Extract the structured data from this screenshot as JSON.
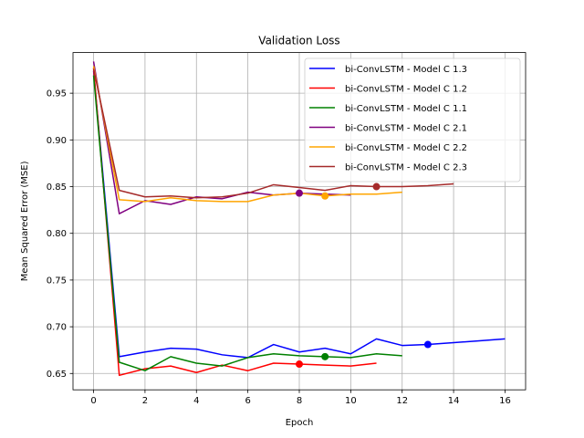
{
  "chart_data": {
    "type": "line",
    "title": "Validation Loss",
    "xlabel": "Epoch",
    "ylabel": "Mean Squared Error (MSE)",
    "xlim": [
      -0.8,
      16.8
    ],
    "ylim": [
      0.6325,
      0.9935
    ],
    "xticks": [
      0,
      2,
      4,
      6,
      8,
      10,
      12,
      14,
      16
    ],
    "yticks": [
      0.65,
      0.7,
      0.75,
      0.8,
      0.85,
      0.9,
      0.95
    ],
    "ytick_labels": [
      "0.65",
      "0.70",
      "0.75",
      "0.80",
      "0.85",
      "0.90",
      "0.95"
    ],
    "grid": true,
    "legend_position": "upper-right",
    "series": [
      {
        "name": "bi-ConvLSTM - Model C 1.3",
        "color": "#0000ff",
        "x": [
          0,
          1,
          2,
          3,
          4,
          5,
          6,
          7,
          8,
          9,
          10,
          11,
          12,
          13,
          14,
          15,
          16
        ],
        "y": [
          0.974,
          0.668,
          0.673,
          0.677,
          0.676,
          0.67,
          0.667,
          0.681,
          0.673,
          0.677,
          0.671,
          0.687,
          0.68,
          0.681,
          0.683,
          0.685,
          0.687
        ],
        "best_epoch": 13,
        "best_value": 0.681
      },
      {
        "name": "bi-ConvLSTM - Model C 1.2",
        "color": "#ff0000",
        "x": [
          0,
          1,
          2,
          3,
          4,
          5,
          6,
          7,
          8,
          9,
          10,
          11
        ],
        "y": [
          0.977,
          0.648,
          0.655,
          0.658,
          0.651,
          0.659,
          0.653,
          0.661,
          0.66,
          0.659,
          0.658,
          0.661
        ],
        "best_epoch": 8,
        "best_value": 0.66
      },
      {
        "name": "bi-ConvLSTM - Model C 1.1",
        "color": "#008000",
        "x": [
          0,
          1,
          2,
          3,
          4,
          5,
          6,
          7,
          8,
          9,
          10,
          11,
          12
        ],
        "y": [
          0.969,
          0.662,
          0.653,
          0.668,
          0.661,
          0.658,
          0.667,
          0.671,
          0.669,
          0.668,
          0.667,
          0.671,
          0.669
        ],
        "best_epoch": 9,
        "best_value": 0.668
      },
      {
        "name": "bi-ConvLSTM - Model C 2.1",
        "color": "#800080",
        "x": [
          0,
          1,
          2,
          3,
          4,
          5,
          6,
          7,
          8,
          9,
          10
        ],
        "y": [
          0.984,
          0.821,
          0.835,
          0.831,
          0.839,
          0.837,
          0.844,
          0.841,
          0.843,
          0.842,
          0.841
        ],
        "best_epoch": 8,
        "best_value": 0.843
      },
      {
        "name": "bi-ConvLSTM - Model C 2.2",
        "color": "#ffa500",
        "x": [
          0,
          1,
          2,
          3,
          4,
          5,
          6,
          7,
          8,
          9,
          10,
          11,
          12
        ],
        "y": [
          0.979,
          0.836,
          0.834,
          0.838,
          0.835,
          0.834,
          0.834,
          0.841,
          0.843,
          0.84,
          0.842,
          0.842,
          0.844
        ],
        "best_epoch": 9,
        "best_value": 0.84
      },
      {
        "name": "bi-ConvLSTM - Model C 2.3",
        "color": "#a52a2a",
        "x": [
          0,
          1,
          2,
          3,
          4,
          5,
          6,
          7,
          8,
          9,
          10,
          11,
          12,
          13,
          14
        ],
        "y": [
          0.976,
          0.846,
          0.839,
          0.84,
          0.838,
          0.839,
          0.843,
          0.852,
          0.849,
          0.846,
          0.851,
          0.85,
          0.85,
          0.851,
          0.853
        ],
        "best_epoch": 11,
        "best_value": 0.85
      }
    ]
  }
}
